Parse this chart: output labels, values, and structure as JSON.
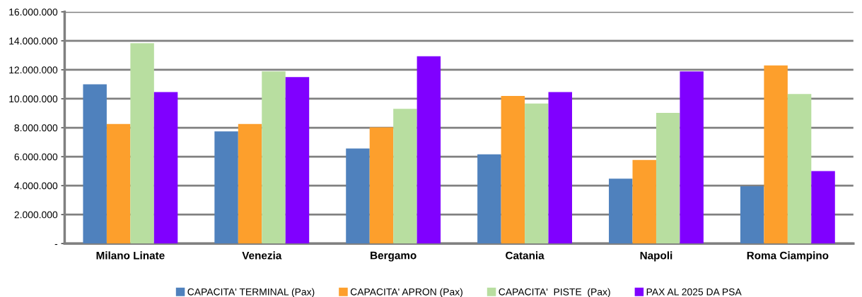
{
  "chart_data": {
    "type": "bar",
    "categories": [
      "Milano Linate",
      "Venezia",
      "Bergamo",
      "Catania",
      "Napoli",
      "Roma Ciampino"
    ],
    "series": [
      {
        "name": "CAPACITA' TERMINAL (Pax)",
        "color": "#4f81bd",
        "values": [
          11000000,
          7740000,
          6560000,
          6160000,
          4480000,
          3960000
        ]
      },
      {
        "name": "CAPACITA' APRON (Pax)",
        "color": "#fd9f2c",
        "values": [
          8260000,
          8260000,
          8030000,
          10190000,
          5770000,
          12300000
        ]
      },
      {
        "name": "CAPACITA'  PISTE  (Pax)",
        "color": "#b8dea0",
        "values": [
          13840000,
          11890000,
          9300000,
          9670000,
          9030000,
          10330000
        ]
      },
      {
        "name": "PAX AL 2025 DA PSA",
        "color": "#8000ff",
        "values": [
          10460000,
          11500000,
          12930000,
          10460000,
          11890000,
          5000000
        ]
      }
    ],
    "ylim": [
      0,
      16000000
    ],
    "yticks": [
      {
        "value": 0,
        "label": "-"
      },
      {
        "value": 2000000,
        "label": "2.000.000"
      },
      {
        "value": 4000000,
        "label": "4.000.000"
      },
      {
        "value": 6000000,
        "label": "6.000.000"
      },
      {
        "value": 8000000,
        "label": "8.000.000"
      },
      {
        "value": 10000000,
        "label": "10.000.000"
      },
      {
        "value": 12000000,
        "label": "12.000.000"
      },
      {
        "value": 14000000,
        "label": "14.000.000"
      },
      {
        "value": 16000000,
        "label": "16.000.000"
      }
    ],
    "grid": "y",
    "legend": "bottom"
  }
}
